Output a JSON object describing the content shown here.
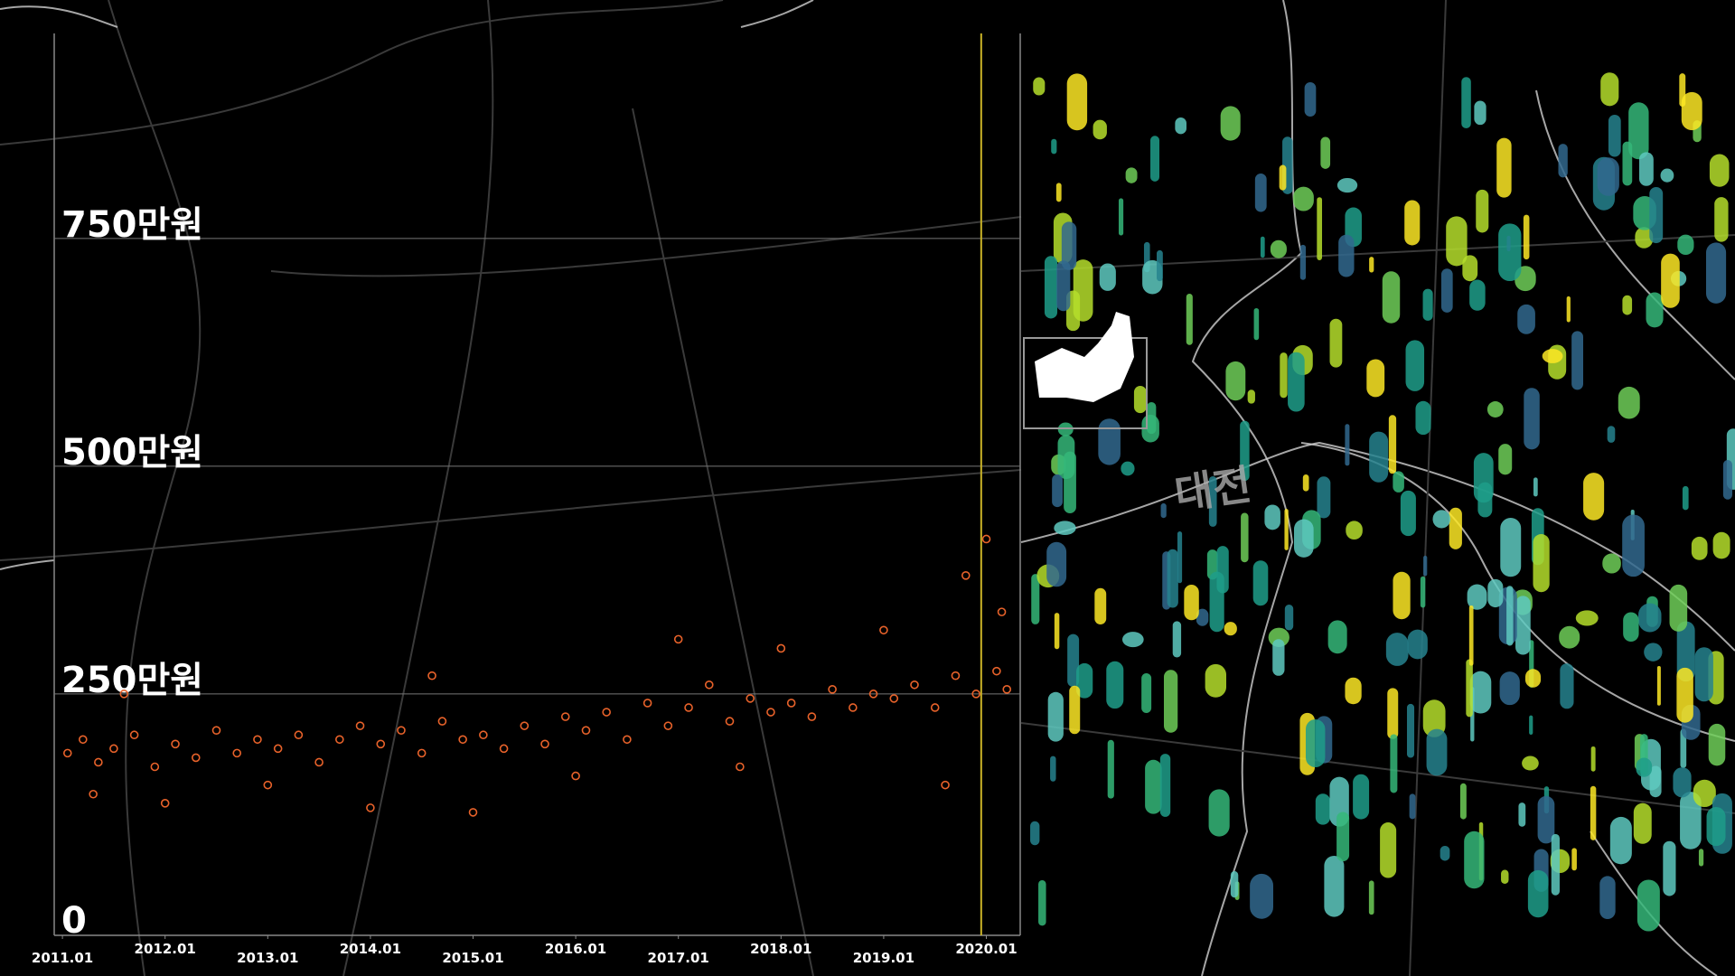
{
  "chart_data": {
    "type": "scatter",
    "color": "#e8622a",
    "marker_color": "#c9b227",
    "marker_x": 2019.95,
    "xlim": [
      2010.92,
      2020.33
    ],
    "ylim": [
      -15,
      975
    ],
    "xticks": [
      {
        "value": 2011,
        "label": "2011.01"
      },
      {
        "value": 2012,
        "label": "2012.01"
      },
      {
        "value": 2013,
        "label": "2013.01"
      },
      {
        "value": 2014,
        "label": "2014.01"
      },
      {
        "value": 2015,
        "label": "2015.01"
      },
      {
        "value": 2016,
        "label": "2016.01"
      },
      {
        "value": 2017,
        "label": "2017.01"
      },
      {
        "value": 2018,
        "label": "2018.01"
      },
      {
        "value": 2019,
        "label": "2019.01"
      },
      {
        "value": 2020,
        "label": "2020.01"
      }
    ],
    "yticks": [
      0,
      {
        "value": 250,
        "label": "250만원"
      },
      {
        "value": 500,
        "label": "500만원"
      },
      {
        "value": 750,
        "label": "750만원"
      }
    ],
    "grid": true,
    "x": [
      2011.05,
      2011.2,
      2011.35,
      2011.5,
      2011.7,
      2011.9,
      2012.1,
      2012.3,
      2012.5,
      2012.7,
      2012.9,
      2013.1,
      2013.3,
      2013.5,
      2013.7,
      2013.9,
      2014.1,
      2014.3,
      2014.5,
      2014.7,
      2014.9,
      2015.1,
      2015.3,
      2015.5,
      2015.7,
      2015.9,
      2016.1,
      2016.3,
      2016.5,
      2016.7,
      2016.9,
      2017.1,
      2017.3,
      2017.5,
      2017.7,
      2017.9,
      2018.1,
      2018.3,
      2018.5,
      2018.7,
      2018.9,
      2019.1,
      2019.3,
      2019.5,
      2019.7,
      2019.9,
      2020.1,
      2020.2,
      2011.3,
      2012.0,
      2013.0,
      2014.0,
      2015.0,
      2016.0,
      2017.0,
      2018.0,
      2019.0,
      2019.8,
      2020.0,
      2020.15,
      2011.6,
      2014.6,
      2017.6,
      2019.6
    ],
    "values": [
      185,
      200,
      175,
      190,
      205,
      170,
      195,
      180,
      210,
      185,
      200,
      190,
      205,
      175,
      200,
      215,
      195,
      210,
      185,
      220,
      200,
      205,
      190,
      215,
      195,
      225,
      210,
      230,
      200,
      240,
      215,
      235,
      260,
      220,
      245,
      230,
      240,
      225,
      255,
      235,
      250,
      245,
      260,
      235,
      270,
      250,
      275,
      255,
      140,
      130,
      150,
      125,
      120,
      160,
      310,
      300,
      320,
      380,
      420,
      340,
      250,
      270,
      170,
      150
    ]
  },
  "map": {
    "label": "대전"
  }
}
